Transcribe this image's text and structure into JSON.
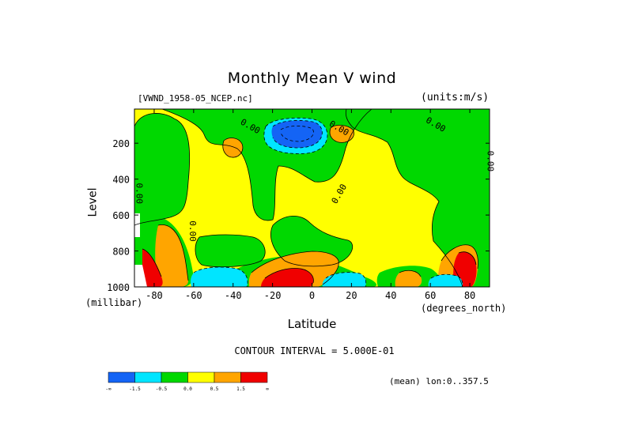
{
  "chart_data": {
    "type": "heatmap",
    "title": "Monthly Mean V wind",
    "dataset_label": "[VWND_1958-05_NCEP.nc]",
    "units_label": "(units:m/s)",
    "xlabel": "Latitude",
    "x_unit_label": "(degrees_north)",
    "ylabel": "Level",
    "y_unit_label": "(millibar)",
    "xlim": [
      -90,
      90
    ],
    "ylim": [
      1000,
      10
    ],
    "x_ticks": [
      -80,
      -60,
      -40,
      -20,
      0,
      20,
      40,
      60,
      80
    ],
    "x_tick_labels": [
      "-80",
      "-60",
      "-40",
      "-20",
      "0",
      "20",
      "40",
      "60",
      "80"
    ],
    "y_ticks": [
      200,
      400,
      600,
      800,
      1000
    ],
    "y_tick_labels": [
      "200",
      "400",
      "600",
      "800",
      "1000"
    ],
    "contour_interval_text": "CONTOUR INTERVAL = 5.000E-01",
    "mean_text": "(mean) lon:0..357.5",
    "contour_labels": [
      {
        "text": "0.00",
        "lat": -32,
        "level": 120
      },
      {
        "text": "0.00",
        "lat": 13,
        "level": 130
      },
      {
        "text": "0.00",
        "lat": 62,
        "level": 110
      },
      {
        "text": "0.00",
        "lat": 89,
        "level": 300
      },
      {
        "text": "0.00",
        "lat": -89,
        "level": 480
      },
      {
        "text": "0.00",
        "lat": 15,
        "level": 490
      },
      {
        "text": "0.00",
        "lat": -62,
        "level": 690
      }
    ],
    "legend": {
      "colors": [
        "#1464f5",
        "#00e5ff",
        "#00d800",
        "#ffff00",
        "#ffa500",
        "#f00000"
      ],
      "labels": [
        "-∞",
        "-1.5",
        "-0.5",
        "0.0",
        "0.5",
        "1.5",
        "∞"
      ]
    },
    "regions": [
      {
        "value_class": "yellow",
        "color": "#ffff00",
        "lat_range": [
          -90,
          90
        ],
        "level_range": [
          10,
          1000
        ]
      },
      {
        "value_class": "green",
        "color": "#00d800",
        "lat": -78,
        "level_top": 130,
        "level_bottom": 690
      },
      {
        "value_class": "green",
        "color": "#00d800",
        "lat": -30,
        "level_top": 20,
        "level_bottom": 620
      },
      {
        "value_class": "green",
        "color": "#00d800",
        "lat": 45,
        "level_top": 20,
        "level_bottom": 640
      },
      {
        "value_class": "green",
        "color": "#00d800",
        "lat": 82,
        "level_top": 130,
        "level_bottom": 1000
      },
      {
        "value_class": "blue",
        "color": "#1464f5",
        "lat": -10,
        "level": 140
      },
      {
        "value_class": "cyan",
        "color": "#00e5ff",
        "lat": -10,
        "level": 160
      },
      {
        "value_class": "orange",
        "color": "#ffa500",
        "lat": -40,
        "level": 200
      },
      {
        "value_class": "orange",
        "color": "#ffa500",
        "lat": 15,
        "level": 140
      },
      {
        "value_class": "red",
        "color": "#f00000",
        "lat": -10,
        "level": 960
      },
      {
        "value_class": "red",
        "color": "#f00000",
        "lat": -80,
        "level": 950
      },
      {
        "value_class": "orange",
        "color": "#ffa500",
        "lat": -70,
        "level": 850
      },
      {
        "value_class": "cyan",
        "color": "#00e5ff",
        "lat": -40,
        "level": 960
      },
      {
        "value_class": "cyan",
        "color": "#00e5ff",
        "lat": 20,
        "level": 970
      },
      {
        "value_class": "cyan",
        "color": "#00e5ff",
        "lat": 65,
        "level": 970
      },
      {
        "value_class": "orange",
        "color": "#ffa500",
        "lat": 50,
        "level": 960
      },
      {
        "value_class": "red",
        "color": "#f00000",
        "lat": 75,
        "level": 930
      }
    ]
  }
}
